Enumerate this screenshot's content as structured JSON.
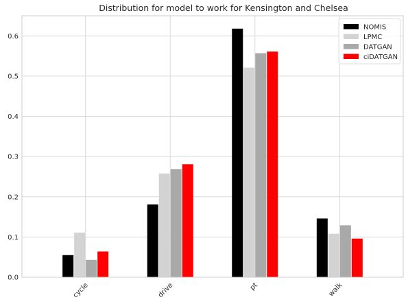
{
  "chart_data": {
    "type": "bar",
    "title": "Distribution for model to work for Kensington and Chelsea",
    "xlabel": "",
    "ylabel": "",
    "categories": [
      "cycle",
      "drive",
      "pt",
      "walk"
    ],
    "series": [
      {
        "name": "NOMIS",
        "color": "#000000",
        "values": [
          0.055,
          0.181,
          0.618,
          0.146
        ]
      },
      {
        "name": "LPMC",
        "color": "#d3d3d3",
        "values": [
          0.111,
          0.258,
          0.521,
          0.108
        ]
      },
      {
        "name": "DATGAN",
        "color": "#a9a9a9",
        "values": [
          0.043,
          0.269,
          0.557,
          0.129
        ]
      },
      {
        "name": "ciDATGAN",
        "color": "#ff0000",
        "values": [
          0.064,
          0.281,
          0.561,
          0.096
        ]
      }
    ],
    "ylim": [
      0,
      0.65
    ],
    "yticks": [
      0.0,
      0.1,
      0.2,
      0.3,
      0.4,
      0.5,
      0.6
    ],
    "ytick_labels": [
      "0.0",
      "0.1",
      "0.2",
      "0.3",
      "0.4",
      "0.5",
      "0.6"
    ],
    "grid": true,
    "legend_position": "top-right"
  }
}
